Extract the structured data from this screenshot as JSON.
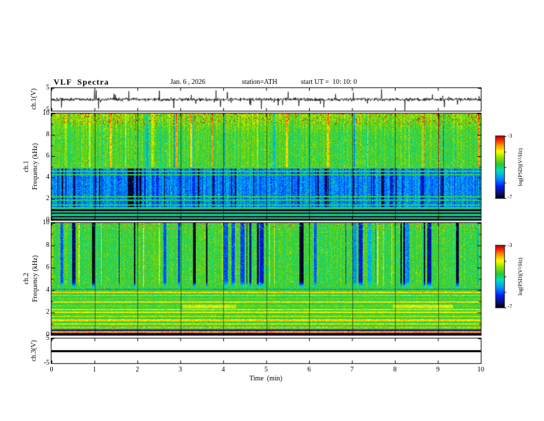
{
  "title": {
    "main": "VLF  Spectra",
    "date": "Jan. 6 , 2026",
    "station": "station=ATH",
    "start_ut": "start UT =  10: 10: 0"
  },
  "time_axis": {
    "label": "Time  (min)",
    "ticks": [
      "0",
      "1",
      "2",
      "3",
      "4",
      "5",
      "6",
      "7",
      "8",
      "9",
      "10"
    ]
  },
  "panels": {
    "ch1_wave": {
      "ylabel": "ch.1(V)",
      "ytick_top": "5",
      "ytick_bottom": "-5"
    },
    "ch1_spec": {
      "channel": "ch.1",
      "ylabel": "Frequency (kHz)",
      "yticks": [
        "10",
        "8",
        "6",
        "4",
        "2",
        "0"
      ]
    },
    "ch2_spec": {
      "channel": "ch.2",
      "ylabel": "Frequency (kHz)",
      "yticks": [
        "10",
        "8",
        "6",
        "4",
        "2",
        "0"
      ]
    },
    "ch3_wave": {
      "ylabel": "ch.3(V)",
      "ytick_top": "5",
      "ytick_bottom": "-5"
    }
  },
  "colorbars": [
    {
      "label": "log(PSD)(V²/Hz)",
      "tick_top": "-3",
      "tick_bottom": "-7"
    },
    {
      "label": "log(PSD)(V²/Hz)",
      "tick_top": "-3",
      "tick_bottom": "-7"
    }
  ],
  "chart_data": [
    {
      "type": "line",
      "name": "ch1_waveform",
      "xlim": [
        0,
        10
      ],
      "ylim": [
        -5,
        5
      ],
      "xlabel": "Time (min)",
      "ylabel": "ch.1(V)",
      "description": "Broadband noise around 0 V with dense impulsive spikes reaching about ±5 V",
      "noise_sigma": 0.45,
      "spike_rate": 0.022,
      "spike_max": 5,
      "seed": 1337,
      "color": "#000000"
    },
    {
      "type": "heatmap",
      "name": "ch1_spectrogram",
      "xlim": [
        0,
        10
      ],
      "ylim": [
        0,
        10
      ],
      "zlim": [
        -7,
        -3
      ],
      "ylabel": "ch.1 Frequency (kHz)",
      "zlabel": "log(PSD)(V²/Hz)",
      "colormap": "jet_black_floor",
      "seed": 24601,
      "upper_band": {
        "f_min": 5,
        "base": 0.57,
        "stripe": 0.22,
        "speckle_top": 0.25,
        "texture": "green-yellow noise with vertical striping, red speckle near 10 kHz"
      },
      "mid_band": {
        "f_min": 1.25,
        "base": 0.31,
        "stripe": 0.22,
        "texture": "blue band 1.2-5 kHz with dark-blue vertical patches"
      },
      "green_lines": [
        {
          "f": 4.95,
          "t": 0.58,
          "w": 0.07
        },
        {
          "f": 4.6,
          "t": 0.56,
          "w": 0.06
        },
        {
          "f": 4.3,
          "t": 0.55,
          "w": 0.05
        },
        {
          "f": 2.25,
          "t": 0.55,
          "w": 0.06
        },
        {
          "f": 1.9,
          "t": 0.52,
          "w": 0.05
        },
        {
          "f": 1.45,
          "t": 0.5,
          "w": 0.05
        }
      ],
      "low_band": {
        "f_max": 1.25,
        "green_t": 0.5,
        "black_bands": [
          [
            0,
            0.14
          ],
          [
            0.3,
            0.44
          ],
          [
            0.6,
            0.74
          ],
          [
            0.9,
            1.04
          ]
        ]
      }
    },
    {
      "type": "heatmap",
      "name": "ch2_spectrogram",
      "xlim": [
        0,
        10
      ],
      "ylim": [
        0,
        10
      ],
      "zlim": [
        -7,
        -3
      ],
      "ylabel": "ch.2 Frequency (kHz)",
      "zlabel": "log(PSD)(V²/Hz)",
      "colormap": "jet_black_floor",
      "seed": 8088,
      "base": 0.56,
      "stripe_region": {
        "f_min": 4.2,
        "dark_rate": 0.07,
        "dark_depth": 0.42,
        "bright_rate": 0.025,
        "bright_boost": 0.16,
        "texture": "green background with irregular dark-blue/black vertical stripes above ~4 kHz"
      },
      "speckle_top": 0.2,
      "h_lines": [
        {
          "f": 4.12,
          "t": 0.3,
          "w": 0.05
        },
        {
          "f": 3.85,
          "t": 0.8,
          "w": 0.07
        },
        {
          "f": 3.55,
          "t": 0.7,
          "w": 0.05
        },
        {
          "f": 3.25,
          "t": 0.64,
          "w": 0.05
        },
        {
          "f": 2.95,
          "t": 0.78,
          "w": 0.06
        },
        {
          "f": 2.6,
          "t": 0.62,
          "w": 0.05
        },
        {
          "f": 2.3,
          "t": 0.7,
          "w": 0.05
        },
        {
          "f": 2.05,
          "t": 0.76,
          "w": 0.06
        },
        {
          "f": 1.7,
          "t": 0.68,
          "w": 0.05
        },
        {
          "f": 1.35,
          "t": 0.8,
          "w": 0.07
        },
        {
          "f": 1.0,
          "t": 0.7,
          "w": 0.05
        },
        {
          "f": 0.7,
          "t": 0.84,
          "w": 0.07
        },
        {
          "f": 0.45,
          "t": 0.1,
          "w": 0.05
        },
        {
          "f": 0.3,
          "t": 0.86,
          "w": 0.08
        },
        {
          "f": 0.1,
          "t": 0.03,
          "w": 0.09
        }
      ],
      "smears": [
        {
          "x_min": 3.05,
          "x_max": 4.3,
          "f_min": 2.45,
          "f_max": 2.75,
          "t": 0.74
        },
        {
          "x_min": 7.95,
          "x_max": 9.35,
          "f_min": 2.45,
          "f_max": 2.75,
          "t": 0.74
        }
      ]
    },
    {
      "type": "line",
      "name": "ch3_waveform",
      "xlim": [
        0,
        10
      ],
      "ylim": [
        -5,
        5
      ],
      "ylabel": "ch.3(V)",
      "description": "Constant flat thick line at 0 V (no signal)",
      "value": 0,
      "linewidth": 3,
      "color": "#000000"
    }
  ]
}
